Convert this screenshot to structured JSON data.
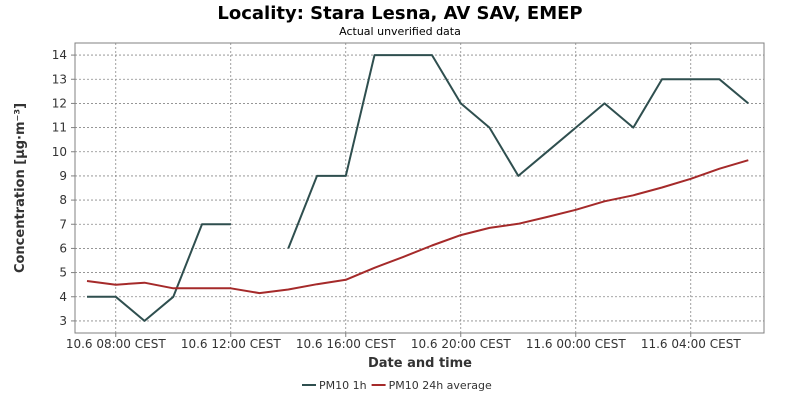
{
  "chart_data": {
    "type": "line",
    "title": "Locality: Stara Lesna, AV SAV, EMEP",
    "subtitle": "Actual unverified data",
    "xlabel": "Date and time",
    "ylabel": "Concentration [µg·m⁻³]",
    "ylim": [
      2.5,
      14.5
    ],
    "y_ticks": [
      3,
      4,
      5,
      6,
      7,
      8,
      9,
      10,
      11,
      12,
      13,
      14
    ],
    "x_tick_labels": [
      "10.6 08:00 CEST",
      "10.6 12:00 CEST",
      "10.6 16:00 CEST",
      "10.6 20:00 CEST",
      "11.6 00:00 CEST",
      "11.6 04:00 CEST"
    ],
    "x_range": [
      "10.6 06:00 CEST",
      "11.6 07:00 CEST"
    ],
    "x": [
      "10.6 07:00",
      "10.6 08:00",
      "10.6 09:00",
      "10.6 10:00",
      "10.6 11:00",
      "10.6 12:00",
      "10.6 13:00",
      "10.6 14:00",
      "10.6 15:00",
      "10.6 16:00",
      "10.6 17:00",
      "10.6 18:00",
      "10.6 19:00",
      "10.6 20:00",
      "10.6 21:00",
      "10.6 22:00",
      "10.6 23:00",
      "11.6 00:00",
      "11.6 01:00",
      "11.6 02:00",
      "11.6 03:00",
      "11.6 04:00",
      "11.6 05:00",
      "11.6 06:00"
    ],
    "series": [
      {
        "name": "PM10 1h",
        "color": "#2f4f4f",
        "values": [
          4,
          4,
          3,
          4,
          7,
          7,
          null,
          6,
          9,
          9,
          14,
          14,
          14,
          12,
          11,
          9,
          10,
          11,
          12,
          11,
          13,
          13,
          13,
          12
        ]
      },
      {
        "name": "PM10 24h average",
        "color": "#a52a2a",
        "values": [
          4.65,
          4.5,
          4.58,
          4.35,
          4.35,
          4.35,
          4.15,
          4.3,
          4.52,
          4.7,
          5.2,
          5.65,
          6.12,
          6.55,
          6.85,
          7.02,
          7.3,
          7.6,
          7.95,
          8.2,
          8.52,
          8.88,
          9.3,
          9.65
        ]
      }
    ],
    "grid": true,
    "legend_position": "bottom"
  }
}
